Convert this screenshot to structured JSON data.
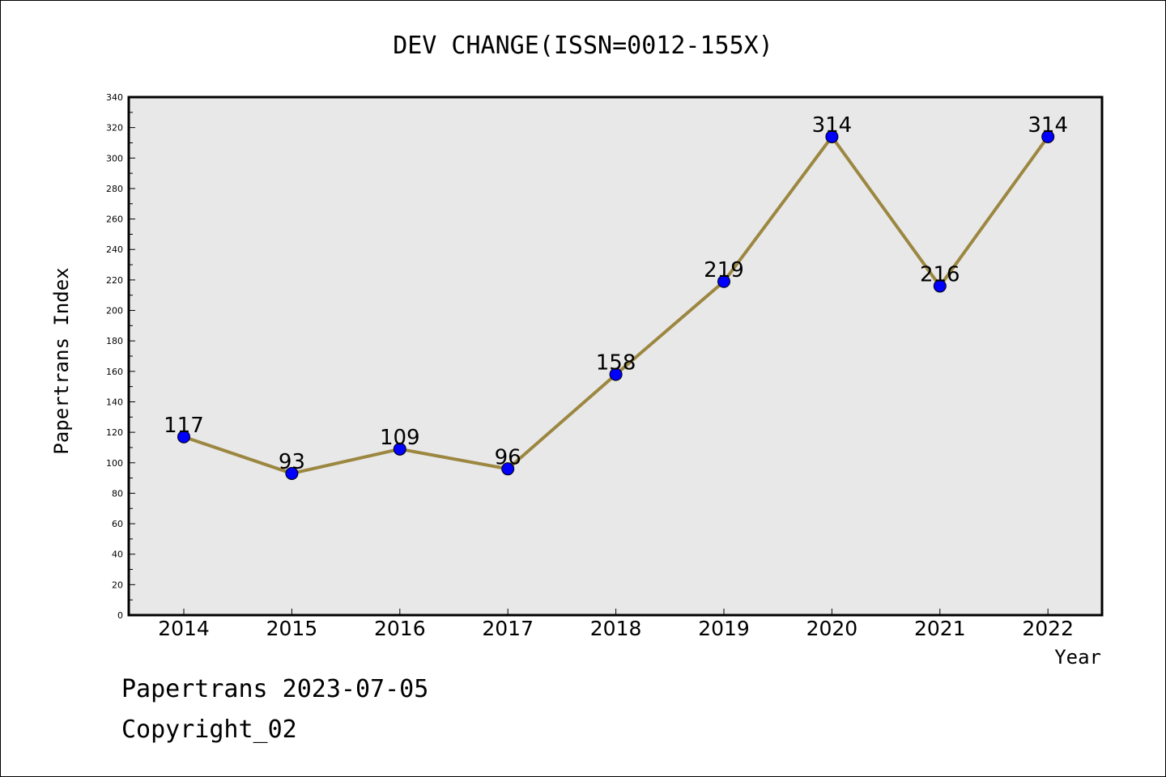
{
  "chart_data": {
    "type": "line",
    "title": "DEV CHANGE(ISSN=0012-155X)",
    "xlabel": "Year",
    "ylabel": "Papertrans Index",
    "x": [
      "2014",
      "2015",
      "2016",
      "2017",
      "2018",
      "2019",
      "2020",
      "2021",
      "2022"
    ],
    "series": [
      {
        "values": [
          117,
          93,
          109,
          96,
          158,
          219,
          314,
          216,
          314
        ]
      }
    ],
    "data_labels": [
      "117",
      "93",
      "109",
      "96",
      "158",
      "219",
      "314",
      "216",
      "314"
    ],
    "ylim": [
      0,
      340
    ],
    "yticks": [
      0,
      20,
      40,
      60,
      80,
      100,
      120,
      140,
      160,
      180,
      200,
      220,
      240,
      260,
      280,
      300,
      320,
      340
    ],
    "grid": false,
    "legend": "none",
    "colors": {
      "line": "#9c8741",
      "marker": "#0000ff",
      "plot_bg": "#e8e8e8"
    }
  },
  "footer": {
    "line1": "Papertrans 2023-07-05",
    "line2": "Copyright_02"
  }
}
